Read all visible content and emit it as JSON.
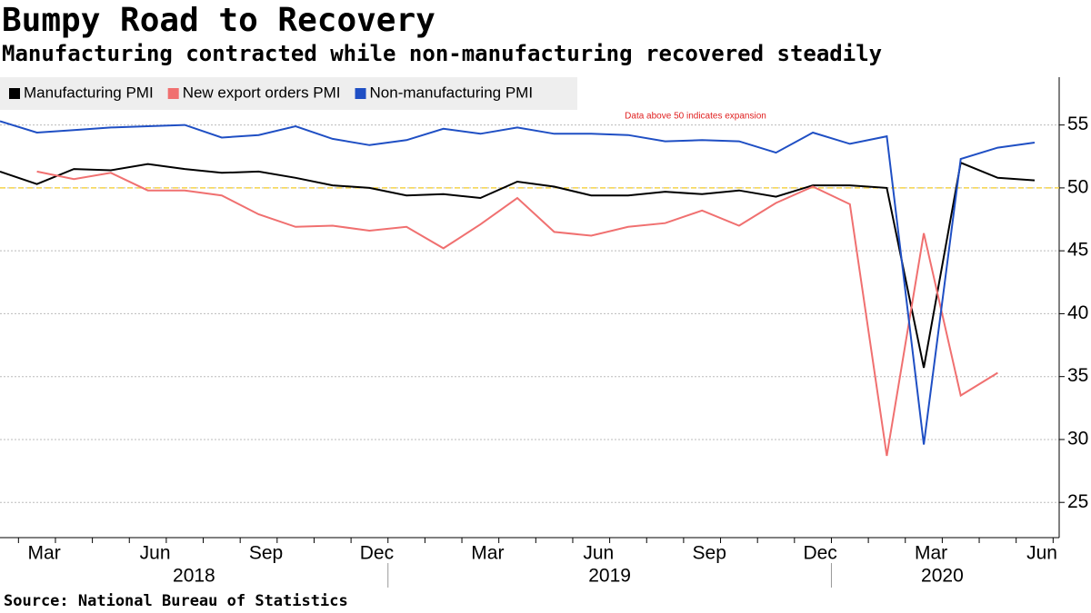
{
  "chart_data": {
    "type": "line",
    "title": "Bumpy Road to Recovery",
    "subtitle": "Manufacturing contracted while non-manufacturing recovered steadily",
    "source": "Source: National Bureau of Statistics",
    "annotation": "Data above 50 indicates expansion",
    "reference_line": {
      "value": 50,
      "color": "#f5d44a"
    },
    "categories": [
      null,
      "Mar",
      null,
      null,
      "Jun",
      null,
      null,
      "Sep",
      null,
      null,
      "Dec",
      null,
      null,
      "Mar",
      null,
      null,
      "Jun",
      null,
      null,
      "Sep",
      null,
      null,
      "Dec",
      null,
      null,
      "Mar",
      null,
      null,
      "Jun"
    ],
    "years": [
      "2018",
      "2019",
      "2020"
    ],
    "series": [
      {
        "name": "Manufacturing PMI",
        "color": "#000000",
        "values": [
          51.3,
          50.3,
          51.5,
          51.4,
          51.9,
          51.5,
          51.2,
          51.3,
          50.8,
          50.2,
          50.0,
          49.4,
          49.5,
          49.2,
          50.5,
          50.1,
          49.4,
          49.4,
          49.7,
          49.5,
          49.8,
          49.3,
          50.2,
          50.2,
          50.0,
          35.7,
          52.0,
          50.8,
          50.6
        ]
      },
      {
        "name": "New export orders PMI",
        "color": "#f07070",
        "values": [
          null,
          51.3,
          50.7,
          51.2,
          49.8,
          49.8,
          49.4,
          47.9,
          46.9,
          47.0,
          46.6,
          46.9,
          45.2,
          47.1,
          49.2,
          46.5,
          46.2,
          46.9,
          47.2,
          48.2,
          47.0,
          48.8,
          50.1,
          48.7,
          28.7,
          46.4,
          33.5,
          35.3,
          null
        ]
      },
      {
        "name": "Non-manufacturing PMI",
        "color": "#1f4fc4",
        "values": [
          55.3,
          54.4,
          54.6,
          54.8,
          54.9,
          55.0,
          54.0,
          54.2,
          54.9,
          53.9,
          53.4,
          53.8,
          54.7,
          54.3,
          54.8,
          54.3,
          54.3,
          54.2,
          53.7,
          53.8,
          53.7,
          52.8,
          54.4,
          53.5,
          54.1,
          29.6,
          52.3,
          53.2,
          53.6
        ]
      }
    ],
    "ylim": [
      22.2,
      58.8
    ],
    "yticks": [
      25,
      30,
      35,
      40,
      45,
      50,
      55
    ],
    "grid": true
  }
}
